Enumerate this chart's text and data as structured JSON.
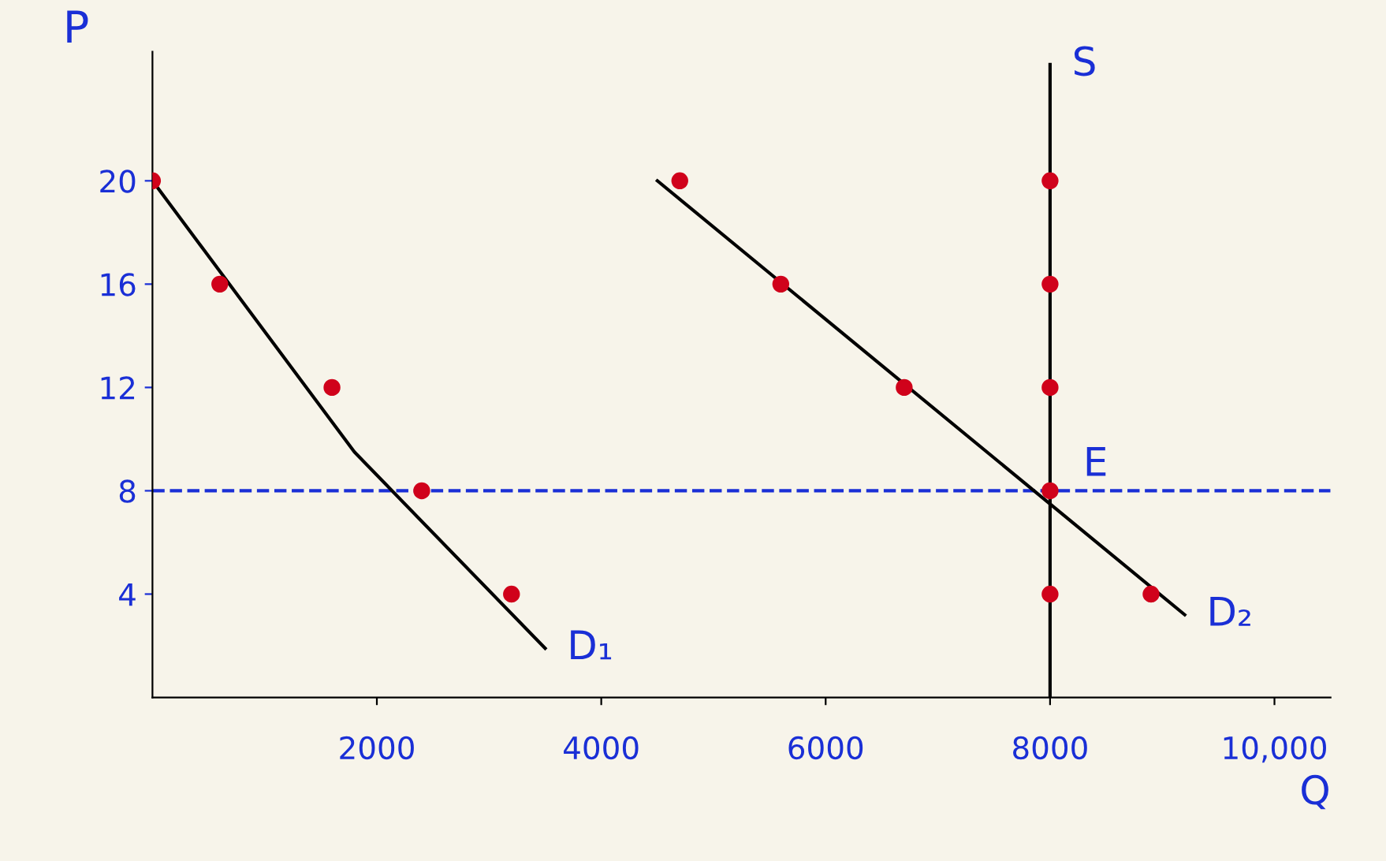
{
  "chart_data": {
    "type": "line",
    "xlabel": "Q",
    "ylabel": "P",
    "xlim": [
      0,
      10500
    ],
    "ylim": [
      0,
      25
    ],
    "xticks": [
      2000,
      4000,
      6000,
      8000,
      {
        "value": 10000,
        "label": "10,000"
      }
    ],
    "yticks": [
      4,
      8,
      12,
      16,
      20
    ],
    "series": [
      {
        "name": "D₁",
        "color": "#000000",
        "marker": "none",
        "x": [
          0,
          1800,
          3500
        ],
        "values": [
          20,
          9.5,
          1.9
        ]
      },
      {
        "type": "scatter",
        "marker": "circle",
        "color": "#d0021b",
        "x": [
          0,
          600,
          1600,
          2400,
          3200
        ],
        "values": [
          20,
          16,
          12,
          8,
          4
        ]
      },
      {
        "name": "D₂",
        "color": "#000000",
        "marker": "none",
        "x": [
          4500,
          9200
        ],
        "values": [
          20,
          3.2
        ]
      },
      {
        "type": "scatter",
        "marker": "circle",
        "color": "#d0021b",
        "x": [
          4700,
          5600,
          6700,
          8000,
          8900
        ],
        "values": [
          20,
          16,
          12,
          8,
          4
        ]
      },
      {
        "name": "S",
        "color": "#000000",
        "marker": "none",
        "x": [
          8000,
          8000
        ],
        "values": [
          0,
          24.5
        ]
      },
      {
        "type": "scatter",
        "marker": "circle",
        "color": "#d0021b",
        "x": [
          8000,
          8000,
          8000,
          8000
        ],
        "values": [
          20,
          16,
          12,
          4
        ]
      }
    ],
    "ref_lines": [
      {
        "axis": "y",
        "value": 8,
        "color": "#1a2fd6",
        "line_style": "dashed"
      }
    ],
    "annotations": [
      "E"
    ],
    "grid": false,
    "legend": false
  }
}
